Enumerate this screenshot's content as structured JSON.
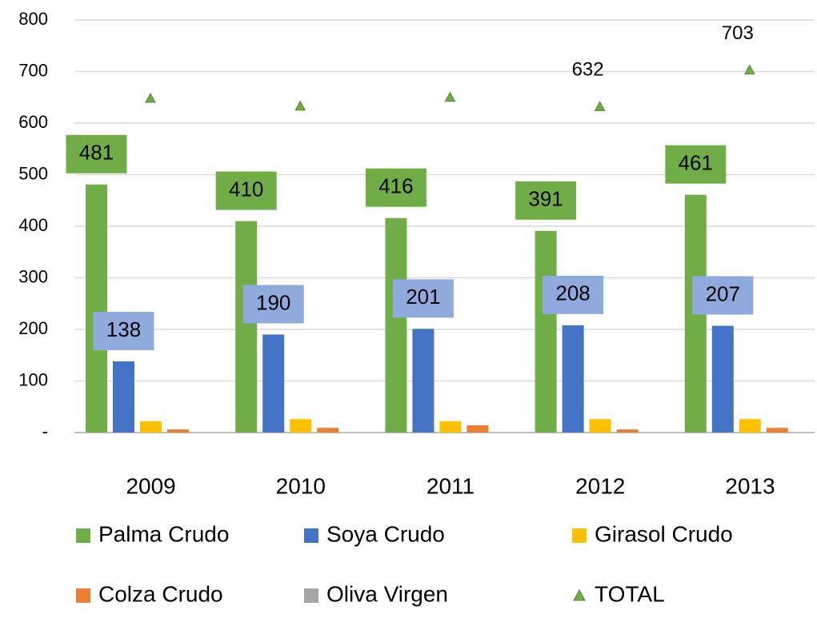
{
  "chart_data": {
    "type": "bar",
    "categories": [
      "2009",
      "2010",
      "2011",
      "2012",
      "2013"
    ],
    "series": [
      {
        "name": "Palma Crudo",
        "color": "#70ad47",
        "values": [
          481,
          410,
          416,
          391,
          461
        ],
        "data_labels": true,
        "label_color": "#70ad47"
      },
      {
        "name": "Soya Crudo",
        "color": "#4472c4",
        "values": [
          138,
          190,
          201,
          208,
          207
        ],
        "data_labels": true,
        "label_color": "#8faadc"
      },
      {
        "name": "Girasol Crudo",
        "color": "#ffc000",
        "values": [
          22,
          26,
          22,
          26,
          26
        ]
      },
      {
        "name": "Colza Crudo",
        "color": "#ed7d31",
        "values": [
          6,
          9,
          14,
          6,
          9
        ]
      },
      {
        "name": "Oliva Virgen",
        "color": "#a5a5a5",
        "values": [
          0,
          0,
          0,
          0,
          0
        ]
      },
      {
        "name": "TOTAL",
        "type": "scatter",
        "marker": "triangle",
        "color": "#70ad47",
        "values": [
          648,
          633,
          650,
          632,
          703
        ],
        "value_labels": [
          null,
          null,
          null,
          "632",
          "703"
        ]
      }
    ],
    "ylim": [
      0,
      800
    ],
    "yticks": [
      {
        "value": 0,
        "label": "-"
      },
      100,
      200,
      300,
      400,
      500,
      600,
      700,
      800
    ],
    "grid": true,
    "legend": "bottom"
  }
}
